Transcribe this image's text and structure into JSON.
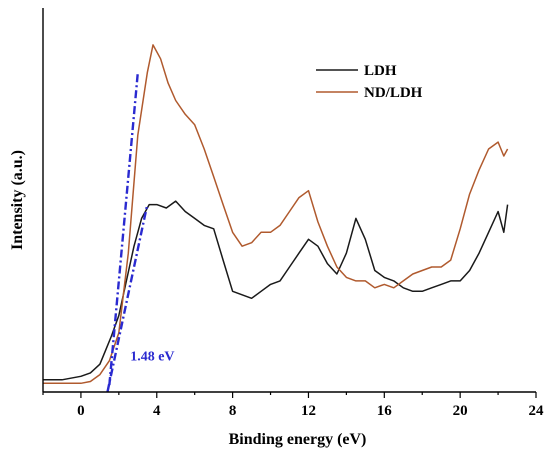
{
  "chart_data": {
    "type": "line",
    "xlabel": "Binding energy (eV)",
    "ylabel": "Intensity (a.u.)",
    "xlim": [
      -2,
      24
    ],
    "ylim": [
      0,
      100
    ],
    "x_ticks": [
      0,
      4,
      8,
      12,
      16,
      20,
      24
    ],
    "y_ticks_labeled": false,
    "grid": false,
    "legend_position": "top-right",
    "series": [
      {
        "name": "LDH",
        "color": "#1a1a1a",
        "x": [
          -2,
          -1,
          0,
          0.5,
          1,
          1.3,
          1.6,
          2.0,
          2.4,
          2.8,
          3.2,
          3.6,
          4.0,
          4.5,
          5.0,
          5.5,
          6.0,
          6.5,
          7.0,
          7.5,
          8.0,
          8.5,
          9.0,
          9.5,
          10.0,
          10.5,
          11.0,
          11.5,
          12.0,
          12.5,
          13.0,
          13.5,
          14.0,
          14.5,
          15.0,
          15.5,
          16.0,
          16.5,
          17.0,
          17.5,
          18.0,
          18.5,
          19.0,
          19.5,
          20.0,
          20.5,
          21.0,
          21.5,
          22.0,
          22.3,
          22.5
        ],
        "y": [
          1.5,
          1.5,
          2.5,
          3.5,
          6,
          10,
          14,
          20,
          30,
          40,
          48,
          52,
          52,
          51,
          53,
          50,
          48,
          46,
          45,
          36,
          27,
          26,
          25,
          27,
          29,
          30,
          34,
          38,
          42,
          40,
          35,
          32,
          38,
          48,
          42,
          33,
          31,
          30,
          28,
          27,
          27,
          28,
          29,
          30,
          30,
          33,
          38,
          44,
          50,
          44,
          52
        ]
      },
      {
        "name": "ND/LDH",
        "color": "#b05a2e",
        "x": [
          -2,
          -1,
          0,
          0.5,
          1,
          1.5,
          2.0,
          2.5,
          3.0,
          3.5,
          3.8,
          4.2,
          4.6,
          5.0,
          5.5,
          6.0,
          6.5,
          7.0,
          7.5,
          8.0,
          8.5,
          9.0,
          9.5,
          10.0,
          10.5,
          11.0,
          11.5,
          12.0,
          12.5,
          13.0,
          13.5,
          14.0,
          14.5,
          15.0,
          15.5,
          16.0,
          16.5,
          17.0,
          17.5,
          18.0,
          18.5,
          19.0,
          19.5,
          20.0,
          20.5,
          21.0,
          21.5,
          22.0,
          22.3,
          22.5
        ],
        "y": [
          0.5,
          0.5,
          0.5,
          1,
          3,
          7,
          15,
          38,
          72,
          90,
          98,
          94,
          87,
          82,
          78,
          75,
          68,
          60,
          52,
          44,
          40,
          41,
          44,
          44,
          46,
          50,
          54,
          56,
          47,
          40,
          34,
          31,
          30,
          30,
          28,
          29,
          28,
          30,
          32,
          33,
          34,
          34,
          36,
          45,
          55,
          62,
          68,
          70,
          66,
          68
        ]
      }
    ],
    "tangent_lines": [
      {
        "x": [
          1.5,
          3.0
        ],
        "y": [
          0,
          90
        ]
      },
      {
        "x": [
          1.4,
          3.5
        ],
        "y": [
          -2,
          52
        ]
      }
    ],
    "annotations": [
      {
        "text": "1.48 eV",
        "x": 2.6,
        "y": 7
      }
    ]
  }
}
